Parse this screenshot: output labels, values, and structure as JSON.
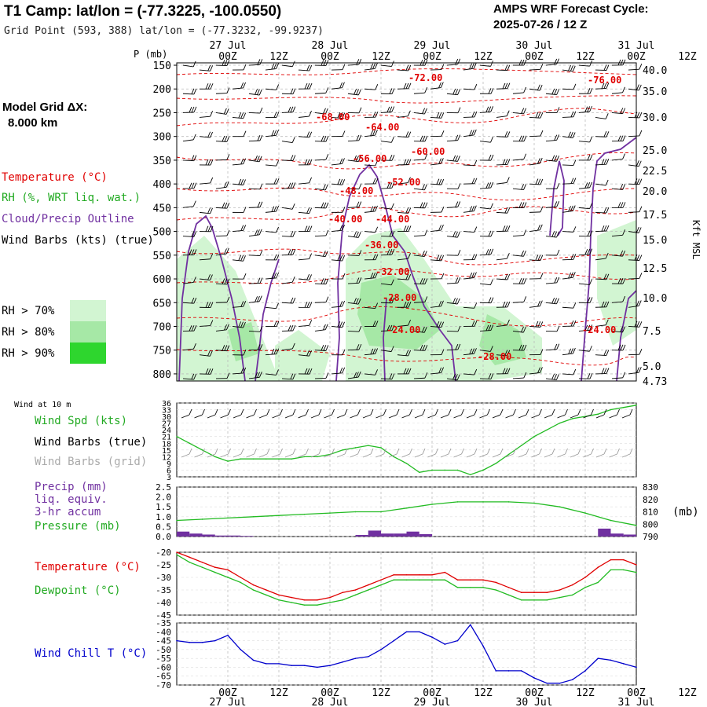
{
  "header": {
    "title": "T1 Camp:  lat/lon = (-77.3225, -100.0550)",
    "subtitle": "Grid Point (593, 388) lat/lon = (-77.3232, -99.9237)",
    "cycle_line1": "AMPS WRF Forecast Cycle:",
    "cycle_line2": "2025-07-26 / 12  Z"
  },
  "model_grid": {
    "line1": "Model Grid ΔX:",
    "line2": "8.000 km"
  },
  "legend_top": {
    "temperature": "Temperature (°C)",
    "rh": "RH (%, WRT liq. wat.)",
    "cloud": "Cloud/Precip Outline",
    "wind": "Wind Barbs (kts) (true)",
    "rh70": "RH > 70%",
    "rh80": "RH > 80%",
    "rh90": "RH > 90%"
  },
  "time_axis": {
    "hour_labels": [
      "00Z",
      "12Z",
      "00Z",
      "12Z",
      "00Z",
      "12Z",
      "00Z",
      "12Z",
      "00Z",
      "12Z"
    ],
    "date_labels": [
      "27 Jul",
      "28 Jul",
      "29 Jul",
      "30 Jul",
      "31 Jul"
    ]
  },
  "pressure_axis": {
    "title": "P (mb)",
    "ticks": [
      "150",
      "200",
      "250",
      "300",
      "350",
      "400",
      "450",
      "500",
      "550",
      "600",
      "650",
      "700",
      "750",
      "800"
    ],
    "right_ticks": [
      "40.0",
      "35.0",
      "30.0",
      "25.0",
      "22.5",
      "20.0",
      "17.5",
      "15.0",
      "12.5",
      "10.0",
      "7.5",
      "5.0",
      "4.73"
    ],
    "right_title": "Kft MSL"
  },
  "temp_contour_labels": [
    "-72.00",
    "-76.00",
    "-68.00",
    "-64.00",
    "-60.00",
    "-56.00",
    "-52.00",
    "-48.00",
    "-40.00",
    "-44.00",
    "-36.00",
    "-32.00",
    "-28.00",
    "-24.00",
    "-28.00",
    "-24.00"
  ],
  "colors": {
    "temperature": "#e00000",
    "rh": "#22bb22",
    "cloud": "#7030a0",
    "wind": "#000000",
    "wind_grid": "#999999",
    "chill": "#0000cc",
    "rh70": "#d2f5d2",
    "rh80": "#a6e8a6",
    "rh90": "#2ed62e"
  },
  "panel_wind": {
    "corner": "Wind at 10 m",
    "spd": "Wind Spd (kts)",
    "barbs_true": "Wind Barbs (true)",
    "barbs_grid": "Wind Barbs (grid)",
    "yticks": [
      "36",
      "33",
      "30",
      "27",
      "24",
      "21",
      "18",
      "15",
      "12",
      "9",
      "6",
      "3"
    ]
  },
  "panel_precip": {
    "precip": "Precip (mm)",
    "liq": "liq. equiv.",
    "accum": "3-hr accum",
    "pressure": "Pressure (mb)",
    "unit": "(mb)",
    "left_ticks": [
      "2.5",
      "2.0",
      "1.5",
      "1.0",
      "0.5",
      "0.0"
    ],
    "right_ticks": [
      "830",
      "820",
      "810",
      "800",
      "790"
    ]
  },
  "panel_temp": {
    "temp": "Temperature (°C)",
    "dew": "Dewpoint (°C)",
    "ticks": [
      "-20",
      "-25",
      "-30",
      "-35",
      "-40",
      "-45"
    ]
  },
  "panel_chill": {
    "label": "Wind Chill T (°C)",
    "ticks": [
      "-35",
      "-40",
      "-45",
      "-50",
      "-55",
      "-60",
      "-65",
      "-70"
    ]
  },
  "chart_data": [
    {
      "type": "line",
      "name": "wind_speed_10m",
      "x_hours": [
        0,
        3,
        6,
        9,
        12,
        15,
        18,
        21,
        24,
        27,
        30,
        33,
        36,
        39,
        42,
        45,
        48,
        51,
        54,
        57,
        60,
        63,
        66,
        69,
        72,
        75,
        78,
        81,
        84,
        87,
        90,
        93,
        96,
        99,
        102,
        105,
        108
      ],
      "values": [
        21,
        18,
        15,
        12,
        10,
        11,
        11,
        11,
        11,
        11,
        12,
        12,
        13,
        15,
        16,
        17,
        16,
        12,
        9,
        5,
        6,
        6,
        6,
        4,
        6,
        9,
        13,
        17,
        21,
        24,
        27,
        29,
        30,
        31,
        33,
        34,
        35
      ],
      "ylim": [
        3,
        36
      ]
    },
    {
      "type": "line",
      "name": "pressure_mb",
      "x_hours": [
        0,
        6,
        12,
        18,
        24,
        30,
        36,
        42,
        48,
        54,
        60,
        66,
        72,
        78,
        84,
        90,
        96,
        102,
        108
      ],
      "values": [
        803,
        804,
        805,
        806,
        807,
        808,
        809,
        810,
        810,
        813,
        816,
        818,
        818,
        818,
        817,
        814,
        809,
        803,
        799
      ],
      "ylim": [
        790,
        830
      ]
    },
    {
      "type": "bar",
      "name": "precip_3hr_mm",
      "x_hours": [
        0,
        3,
        6,
        9,
        12,
        15,
        42,
        45,
        48,
        51,
        54,
        57,
        99,
        102,
        105
      ],
      "values": [
        0.25,
        0.15,
        0.1,
        0.05,
        0.05,
        0.03,
        0.08,
        0.3,
        0.15,
        0.15,
        0.25,
        0.12,
        0.4,
        0.15,
        0.1
      ],
      "ylim": [
        0,
        2.5
      ]
    },
    {
      "type": "line",
      "name": "temperature_dewpoint",
      "x_hours": [
        0,
        3,
        6,
        9,
        12,
        15,
        18,
        21,
        24,
        27,
        30,
        33,
        36,
        39,
        42,
        45,
        48,
        51,
        54,
        57,
        60,
        63,
        66,
        69,
        72,
        75,
        78,
        81,
        84,
        87,
        90,
        93,
        96,
        99,
        102,
        105,
        108
      ],
      "series": [
        {
          "name": "Temperature",
          "values": [
            -20,
            -22,
            -24,
            -26,
            -27,
            -30,
            -33,
            -35,
            -37,
            -38,
            -39,
            -39,
            -38,
            -36,
            -35,
            -33,
            -31,
            -29,
            -29,
            -29,
            -29,
            -28,
            -31,
            -31,
            -31,
            -32,
            -34,
            -36,
            -36,
            -36,
            -35,
            -33,
            -30,
            -26,
            -23,
            -23,
            -25
          ]
        },
        {
          "name": "Dewpoint",
          "values": [
            -21,
            -24,
            -26,
            -28,
            -30,
            -32,
            -35,
            -37,
            -39,
            -40,
            -41,
            -41,
            -40,
            -39,
            -37,
            -35,
            -33,
            -31,
            -31,
            -31,
            -31,
            -31,
            -34,
            -34,
            -34,
            -35,
            -37,
            -39,
            -39,
            -39,
            -38,
            -37,
            -34,
            -32,
            -27,
            -27,
            -28
          ]
        }
      ],
      "ylim": [
        -45,
        -20
      ]
    },
    {
      "type": "line",
      "name": "wind_chill",
      "x_hours": [
        0,
        3,
        6,
        9,
        12,
        15,
        18,
        21,
        24,
        27,
        30,
        33,
        36,
        39,
        42,
        45,
        48,
        51,
        54,
        57,
        60,
        63,
        66,
        69,
        72,
        75,
        78,
        81,
        84,
        87,
        90,
        93,
        96,
        99,
        102,
        105,
        108
      ],
      "values": [
        -45,
        -46,
        -46,
        -45,
        -42,
        -50,
        -56,
        -58,
        -58,
        -59,
        -59,
        -60,
        -59,
        -57,
        -55,
        -54,
        -50,
        -45,
        -40,
        -40,
        -43,
        -47,
        -45,
        -36,
        -48,
        -62,
        -62,
        -62,
        -66,
        -69,
        -69,
        -67,
        -62,
        -55,
        -56,
        -58,
        -60
      ],
      "ylim": [
        -70,
        -35
      ]
    }
  ]
}
